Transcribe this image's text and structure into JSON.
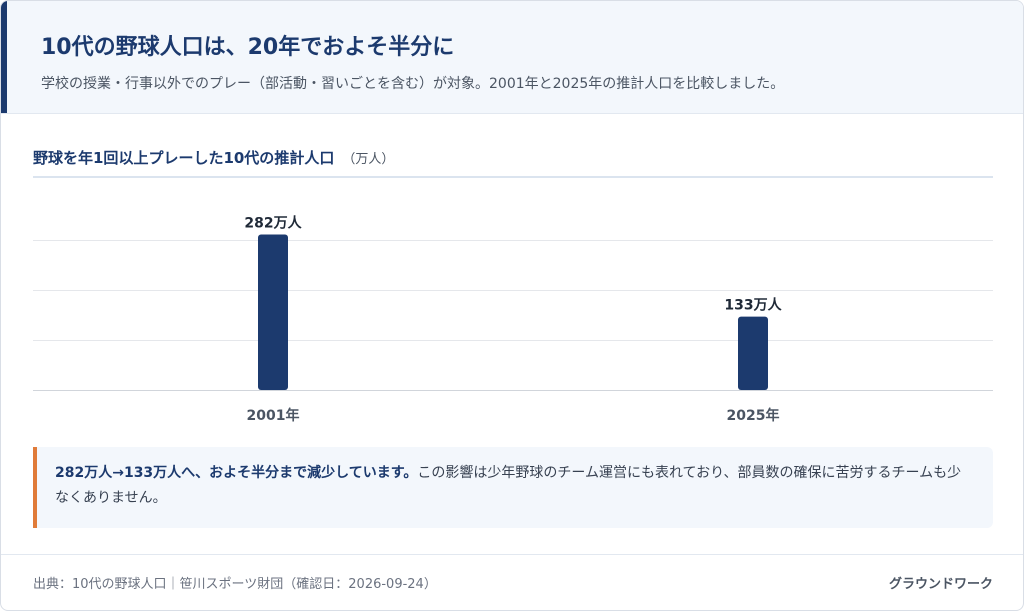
{
  "header": {
    "title": "10代の野球人口は、20年でおよそ半分に",
    "subtitle": "学校の授業・行事以外でのプレー（部活動・習いごとを含む）が対象。2001年と2025年の推計人口を比較しました。"
  },
  "chart_section": {
    "title": "野球を年1回以上プレーした10代の推計人口",
    "unit": "（万人）"
  },
  "chart_data": {
    "type": "bar",
    "categories": [
      "2001年",
      "2025年"
    ],
    "values": [
      282,
      133
    ],
    "value_labels": [
      "282万人",
      "133万人"
    ],
    "title": "野球を年1回以上プレーした10代の推計人口",
    "unit": "万人",
    "ylim": [
      0,
      350
    ],
    "grid": true,
    "bar_color": "#1c3a6e"
  },
  "note": {
    "strong": "282万人→133万人へ、およそ半分まで減少しています。",
    "text": "この影響は少年野球のチーム運営にも表れており、部員数の確保に苦労するチームも少なくありません。"
  },
  "footer": {
    "source": "出典：10代の野球人口｜笹川スポーツ財団（確認日：2026-09-24）",
    "brand": "グラウンドワーク"
  },
  "colors": {
    "accent": "#1c3a6e",
    "highlight": "#e07b39"
  }
}
